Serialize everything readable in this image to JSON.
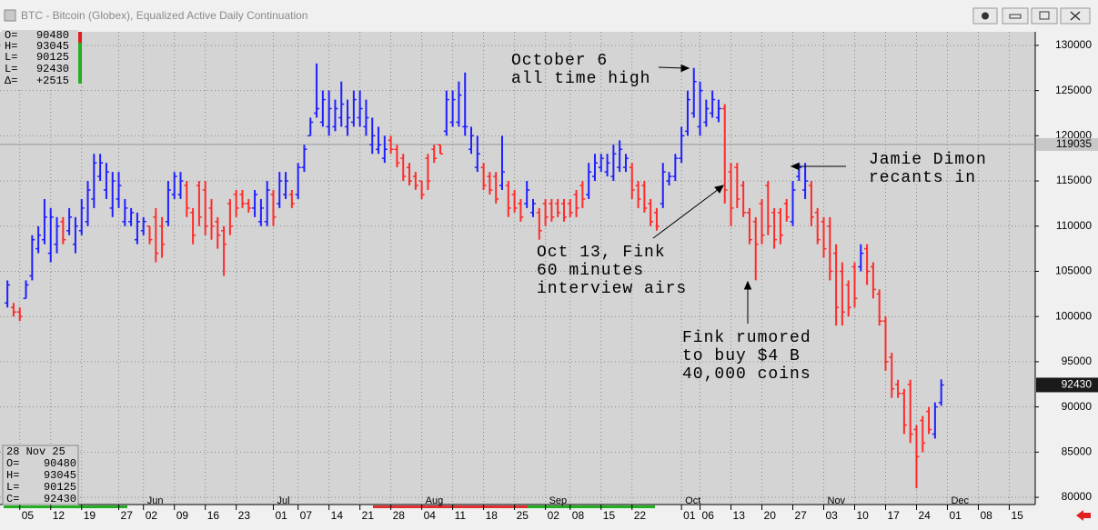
{
  "window_title": "BTC - Bitcoin (Globex), Equalized Active Daily Continuation",
  "chart_data": {
    "type": "ohlc",
    "up_color": "#1f1fff",
    "down_color": "#ff2a2a",
    "ylim": [
      79200,
      131500
    ],
    "yticks": [
      130000,
      125000,
      120000,
      115000,
      110000,
      105000,
      100000,
      95000,
      90000,
      85000,
      80000
    ],
    "xlim": [
      -1.2,
      166.2
    ],
    "xticks": [
      {
        "value": 2,
        "label": "05"
      },
      {
        "value": 7,
        "label": "12"
      },
      {
        "value": 12,
        "label": "19"
      },
      {
        "value": 18,
        "label": "27"
      },
      {
        "value": 22,
        "label": "02"
      },
      {
        "value": 27,
        "label": "09"
      },
      {
        "value": 32,
        "label": "16"
      },
      {
        "value": 37,
        "label": "23"
      },
      {
        "value": 43,
        "label": "01"
      },
      {
        "value": 47,
        "label": "07"
      },
      {
        "value": 52,
        "label": "14"
      },
      {
        "value": 57,
        "label": "21"
      },
      {
        "value": 62,
        "label": "28"
      },
      {
        "value": 67,
        "label": "04"
      },
      {
        "value": 72,
        "label": "11"
      },
      {
        "value": 77,
        "label": "18"
      },
      {
        "value": 82,
        "label": "25"
      },
      {
        "value": 87,
        "label": "02"
      },
      {
        "value": 91,
        "label": "08"
      },
      {
        "value": 96,
        "label": "15"
      },
      {
        "value": 101,
        "label": "22"
      },
      {
        "value": 109,
        "label": "01"
      },
      {
        "value": 112,
        "label": "06"
      },
      {
        "value": 117,
        "label": "13"
      },
      {
        "value": 122,
        "label": "20"
      },
      {
        "value": 127,
        "label": "27"
      },
      {
        "value": 132,
        "label": "03"
      },
      {
        "value": 137,
        "label": "10"
      },
      {
        "value": 142,
        "label": "17"
      },
      {
        "value": 147,
        "label": "24"
      },
      {
        "value": 152,
        "label": "01"
      },
      {
        "value": 157,
        "label": "08"
      },
      {
        "value": 162,
        "label": "15"
      }
    ],
    "month_labels": [
      {
        "value": 22,
        "label": "Jun"
      },
      {
        "value": 43,
        "label": "Jul"
      },
      {
        "value": 67,
        "label": "Aug"
      },
      {
        "value": 87,
        "label": "Sep"
      },
      {
        "value": 109,
        "label": "Oct"
      },
      {
        "value": 132,
        "label": "Nov"
      },
      {
        "value": 152,
        "label": "Dec"
      }
    ],
    "grid": true,
    "ref_line": 119035,
    "info_top": {
      "labels": [
        "O=",
        "H=",
        "L=",
        "L=",
        "Δ="
      ],
      "delta": "+2515"
    },
    "info_bottom": {
      "date": "28 Nov 25",
      "labels": [
        "O=",
        "H=",
        "L=",
        "C="
      ]
    },
    "annotations": [
      {
        "lines": [
          "October 6",
          "all time high"
        ]
      },
      {
        "lines": [
          "Jamie Dimon",
          "recants in"
        ]
      },
      {
        "lines": [
          "Oct 13, Fink",
          "60 minutes",
          "interview airs"
        ]
      },
      {
        "lines": [
          "Fink rumored",
          "to buy $4 B",
          "40,000 coins"
        ]
      }
    ],
    "ohlc": [
      [
        101500,
        104000,
        101000,
        103500
      ],
      [
        101000,
        101500,
        100000,
        100500
      ],
      [
        100500,
        101000,
        99500,
        100000
      ],
      [
        102000,
        104000,
        102000,
        103500
      ],
      [
        104500,
        109000,
        104000,
        108500
      ],
      [
        107500,
        110000,
        107000,
        109000
      ],
      [
        108500,
        113000,
        108000,
        111000
      ],
      [
        107000,
        112000,
        106000,
        111000
      ],
      [
        108000,
        111000,
        107000,
        110000
      ],
      [
        110500,
        111000,
        108000,
        108500
      ],
      [
        109500,
        112000,
        109000,
        111000
      ],
      [
        108000,
        111000,
        107000,
        110000
      ],
      [
        109500,
        113000,
        109000,
        112000
      ],
      [
        110500,
        115000,
        110000,
        114000
      ],
      [
        113000,
        118000,
        112000,
        117000
      ],
      [
        115500,
        118000,
        115000,
        117000
      ],
      [
        114000,
        117000,
        113000,
        116000
      ],
      [
        112000,
        116000,
        111000,
        115000
      ],
      [
        113000,
        116000,
        112000,
        114500
      ],
      [
        110500,
        113000,
        110000,
        112000
      ],
      [
        110500,
        112000,
        110000,
        111500
      ],
      [
        108500,
        111500,
        108000,
        110500
      ],
      [
        109500,
        111000,
        109000,
        110500
      ],
      [
        110000,
        110000,
        108000,
        108500
      ],
      [
        111000,
        112000,
        106000,
        107000
      ],
      [
        110000,
        111000,
        106500,
        108000
      ],
      [
        110500,
        115000,
        110000,
        114000
      ],
      [
        113500,
        116000,
        113000,
        115500
      ],
      [
        113500,
        116000,
        113000,
        115000
      ],
      [
        114500,
        115000,
        111000,
        112000
      ],
      [
        111500,
        112000,
        108000,
        109000
      ],
      [
        114500,
        115000,
        110000,
        111000
      ],
      [
        114000,
        115000,
        109000,
        110000
      ],
      [
        112000,
        113000,
        108500,
        110000
      ],
      [
        110500,
        111000,
        107500,
        109000
      ],
      [
        109500,
        110000,
        104500,
        108000
      ],
      [
        112500,
        113000,
        109000,
        110000
      ],
      [
        113500,
        114000,
        111000,
        112000
      ],
      [
        113500,
        114000,
        112000,
        112500
      ],
      [
        112500,
        113000,
        111500,
        112000
      ],
      [
        112000,
        114000,
        111000,
        113500
      ],
      [
        110500,
        113000,
        110000,
        112000
      ],
      [
        110500,
        115000,
        110000,
        114000
      ],
      [
        113500,
        114000,
        110000,
        111000
      ],
      [
        112500,
        116000,
        112000,
        115000
      ],
      [
        113500,
        116000,
        113000,
        115000
      ],
      [
        113500,
        114000,
        112000,
        112500
      ],
      [
        113500,
        117000,
        113000,
        116500
      ],
      [
        116500,
        119000,
        116000,
        118500
      ],
      [
        120000,
        122000,
        120000,
        121500
      ],
      [
        122500,
        128000,
        122000,
        123000
      ],
      [
        121500,
        125000,
        121000,
        124000
      ],
      [
        121000,
        125000,
        120000,
        123000
      ],
      [
        121000,
        124000,
        120500,
        123000
      ],
      [
        122000,
        126000,
        121000,
        123500
      ],
      [
        121000,
        124000,
        120000,
        122000
      ],
      [
        121500,
        125000,
        121000,
        124000
      ],
      [
        122000,
        125000,
        121000,
        123000
      ],
      [
        121000,
        124000,
        120000,
        122000
      ],
      [
        119000,
        122000,
        118000,
        120000
      ],
      [
        118500,
        121000,
        118000,
        119000
      ],
      [
        117500,
        120000,
        117000,
        118500
      ],
      [
        119500,
        120000,
        118000,
        118500
      ],
      [
        118500,
        119000,
        116500,
        117000
      ],
      [
        117500,
        118000,
        115000,
        115500
      ],
      [
        116500,
        117000,
        114500,
        115000
      ],
      [
        115500,
        116000,
        114000,
        114500
      ],
      [
        115000,
        115000,
        113000,
        113500
      ],
      [
        117500,
        118000,
        114000,
        115000
      ],
      [
        118500,
        119000,
        117000,
        117500
      ],
      [
        119000,
        119000,
        118000,
        118000
      ],
      [
        120500,
        125000,
        120000,
        124000
      ],
      [
        121500,
        125000,
        121000,
        124000
      ],
      [
        121500,
        126000,
        121000,
        124500
      ],
      [
        121000,
        127000,
        120000,
        121000
      ],
      [
        118500,
        121000,
        118000,
        120000
      ],
      [
        116500,
        120000,
        116000,
        118000
      ],
      [
        116500,
        117000,
        114000,
        114500
      ],
      [
        115500,
        116000,
        113500,
        114000
      ],
      [
        115500,
        116000,
        112500,
        113000
      ],
      [
        114500,
        120000,
        114000,
        116000
      ],
      [
        114500,
        115000,
        111000,
        112000
      ],
      [
        113500,
        114000,
        111500,
        112000
      ],
      [
        112500,
        113000,
        110500,
        111000
      ],
      [
        112500,
        115000,
        112000,
        114000
      ],
      [
        111500,
        113000,
        111000,
        112500
      ],
      [
        111500,
        112000,
        108500,
        109500
      ],
      [
        112500,
        113000,
        110000,
        111000
      ],
      [
        112500,
        113000,
        110500,
        111000
      ],
      [
        112500,
        113000,
        111000,
        111500
      ],
      [
        112500,
        113000,
        110500,
        111000
      ],
      [
        112500,
        113000,
        111000,
        111500
      ],
      [
        113500,
        114000,
        111000,
        112000
      ],
      [
        114500,
        115000,
        112000,
        113000
      ],
      [
        113500,
        117000,
        113000,
        116000
      ],
      [
        115500,
        118000,
        115000,
        117000
      ],
      [
        116500,
        118000,
        116000,
        117500
      ],
      [
        116000,
        118000,
        115500,
        117000
      ],
      [
        115500,
        119000,
        115000,
        118000
      ],
      [
        116500,
        119500,
        116000,
        118500
      ],
      [
        116500,
        118000,
        116000,
        117500
      ],
      [
        116500,
        117000,
        113000,
        114000
      ],
      [
        114500,
        115000,
        112000,
        113000
      ],
      [
        114500,
        115000,
        111500,
        112000
      ],
      [
        112500,
        113000,
        110000,
        110500
      ],
      [
        111500,
        112000,
        109500,
        110000
      ],
      [
        112500,
        117000,
        112000,
        116000
      ],
      [
        115000,
        116000,
        114500,
        115500
      ],
      [
        115500,
        118000,
        115000,
        117500
      ],
      [
        117500,
        121000,
        117000,
        120000
      ],
      [
        120500,
        125000,
        120000,
        124000
      ],
      [
        122500,
        127500,
        122000,
        126000
      ],
      [
        121000,
        126000,
        120000,
        125000
      ],
      [
        121500,
        124000,
        121000,
        123000
      ],
      [
        122500,
        125000,
        122000,
        124000
      ],
      [
        122000,
        124000,
        121500,
        123000
      ],
      [
        123000,
        123500,
        112500,
        114000
      ],
      [
        116000,
        117000,
        110000,
        112000
      ],
      [
        116500,
        117000,
        112000,
        113000
      ],
      [
        114500,
        115000,
        111000,
        111500
      ],
      [
        111500,
        112000,
        108000,
        108500
      ],
      [
        110500,
        111000,
        104000,
        108000
      ],
      [
        112500,
        113000,
        108000,
        109000
      ],
      [
        114500,
        115000,
        109000,
        110000
      ],
      [
        111500,
        112000,
        107500,
        108500
      ],
      [
        111500,
        112000,
        108000,
        109000
      ],
      [
        112500,
        113000,
        110500,
        111000
      ],
      [
        110500,
        115000,
        110000,
        114000
      ],
      [
        115500,
        117000,
        115000,
        116500
      ],
      [
        114000,
        117000,
        113000,
        115000
      ],
      [
        114500,
        115000,
        110000,
        111000
      ],
      [
        111500,
        112000,
        108000,
        108500
      ],
      [
        110500,
        111000,
        106500,
        107500
      ],
      [
        110000,
        111000,
        104000,
        105000
      ],
      [
        107000,
        108000,
        99000,
        101000
      ],
      [
        105000,
        106000,
        99000,
        100500
      ],
      [
        103500,
        104000,
        100000,
        101000
      ],
      [
        105500,
        106000,
        101000,
        102000
      ],
      [
        105500,
        108000,
        105000,
        107000
      ],
      [
        107500,
        108000,
        103500,
        105000
      ],
      [
        105500,
        106000,
        102000,
        103000
      ],
      [
        102500,
        103000,
        99000,
        99500
      ],
      [
        99500,
        100000,
        94000,
        95000
      ],
      [
        95500,
        96000,
        91000,
        92000
      ],
      [
        92500,
        93000,
        91000,
        91500
      ],
      [
        91500,
        92000,
        87000,
        88000
      ],
      [
        92500,
        93000,
        86000,
        87000
      ],
      [
        87500,
        88000,
        81000,
        84500
      ],
      [
        88500,
        89000,
        85000,
        86000
      ],
      [
        89500,
        90000,
        87000,
        87500
      ],
      [
        87000,
        90500,
        86500,
        90000
      ],
      [
        90480,
        93045,
        90125,
        92430
      ]
    ]
  }
}
